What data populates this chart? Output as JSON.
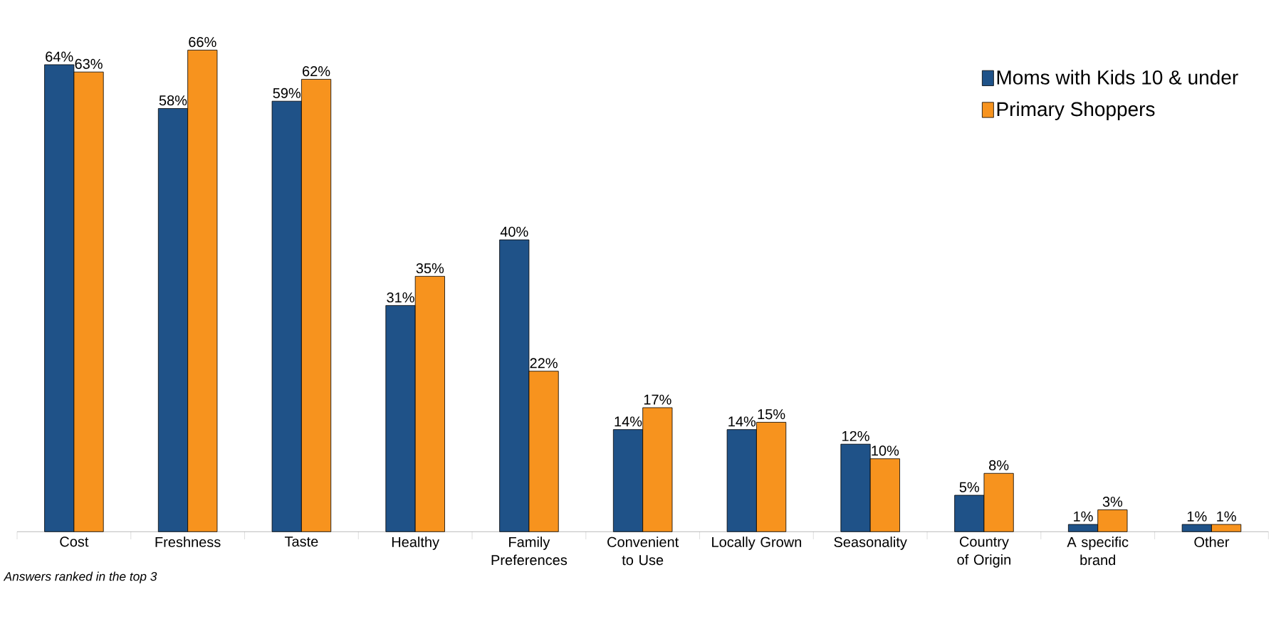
{
  "chart_data": {
    "type": "bar",
    "categories": [
      "Cost",
      "Freshness",
      "Taste",
      "Healthy",
      "Family Preferences",
      "Convenient to Use",
      "Locally Grown",
      "Seasonality",
      "Country of Origin",
      "A specific brand",
      "Other"
    ],
    "series": [
      {
        "name": "Moms with Kids 10 & under",
        "color": "#1f5288",
        "values": [
          64,
          58,
          59,
          31,
          40,
          14,
          14,
          12,
          5,
          1,
          1
        ],
        "value_labels": [
          "64%",
          "58%",
          "59%",
          "31%",
          "40%",
          "14%",
          "14%",
          "12%",
          "5%",
          "1%",
          "1%"
        ]
      },
      {
        "name": "Primary Shoppers",
        "color": "#f7931e",
        "values": [
          63,
          66,
          62,
          35,
          22,
          17,
          15,
          10,
          8,
          3,
          1
        ],
        "value_labels": [
          "63%",
          "66%",
          "62%",
          "35%",
          "22%",
          "17%",
          "15%",
          "10%",
          "8%",
          "3%",
          "1%"
        ]
      }
    ],
    "legend": "top right",
    "annotations": [
      "Answers ranked in the top 3"
    ]
  }
}
